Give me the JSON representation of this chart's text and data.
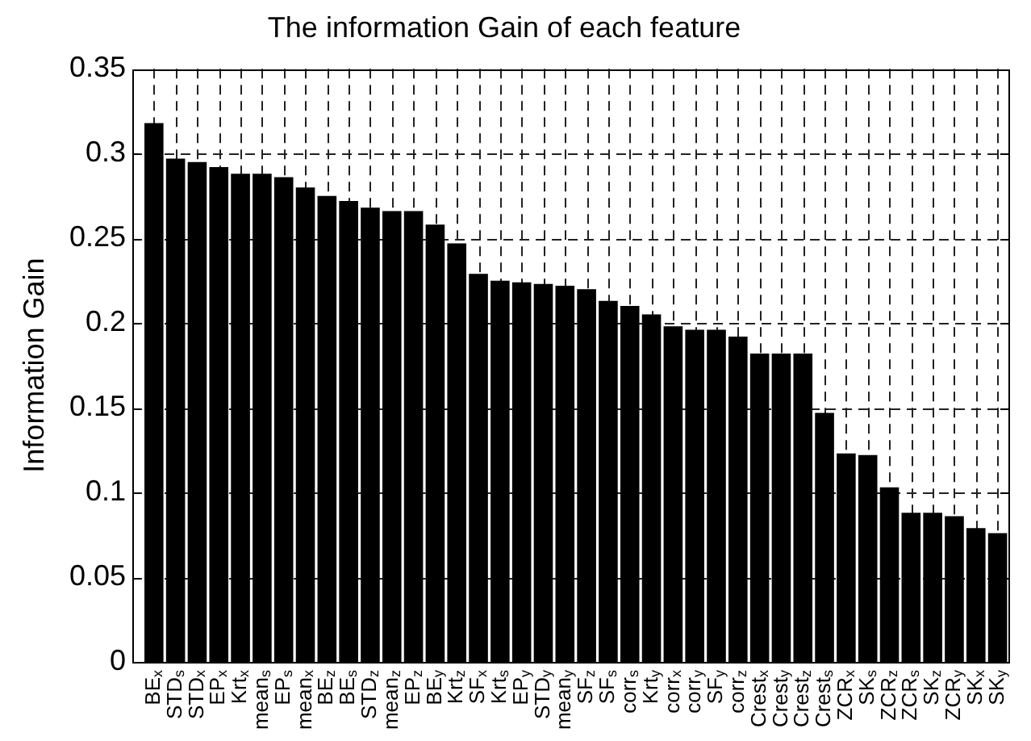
{
  "chart_data": {
    "type": "bar",
    "title": "The information Gain of each feature",
    "ylabel": "Information Gain",
    "categories": [
      "BE$_{x}$",
      "STD$_{s}$",
      "STD$_{x}$",
      "EP$_{x}$",
      "Krt$_{x}$",
      "mean$_{s}$",
      "EP$_{s}$",
      "mean$_{x}$",
      "BE$_{z}$",
      "BE$_{s}$",
      "STD$_{z}$",
      "mean$_{z}$",
      "EP$_{z}$",
      "BE$_{y}$",
      "Krt$_{z}$",
      "SF$_{x}$",
      "Krt$_{s}$",
      "EP$_{y}$",
      "STD$_{y}$",
      "mean$_{y}$",
      "SF$_{z}$",
      "SF$_{s}$",
      "corr$_{s}$",
      "Krt$_{y}$",
      "corr$_{x}$",
      "corr$_{y}$",
      "SF$_{y}$",
      "corr$_{z}$",
      "Crest$_{x}$",
      "Crest$_{y}$",
      "Crest$_{z}$",
      "Crest$_{s}$",
      "ZCR$_{x}$",
      "SK$_{s}$",
      "ZCR$_{z}$",
      "ZCR$_{s}$",
      "SK$_{z}$",
      "ZCR$_{y}$",
      "SK$_{x}$",
      "SK$_{y}$"
    ],
    "values": [
      0.318,
      0.297,
      0.295,
      0.292,
      0.288,
      0.288,
      0.286,
      0.28,
      0.275,
      0.272,
      0.268,
      0.266,
      0.266,
      0.258,
      0.247,
      0.229,
      0.225,
      0.224,
      0.223,
      0.222,
      0.22,
      0.213,
      0.21,
      0.205,
      0.198,
      0.196,
      0.196,
      0.192,
      0.182,
      0.182,
      0.182,
      0.147,
      0.123,
      0.122,
      0.103,
      0.088,
      0.088,
      0.086,
      0.079,
      0.076
    ],
    "color": "#000000",
    "ylim": [
      0,
      0.35
    ],
    "yticks": [
      0,
      0.05,
      0.1,
      0.15,
      0.2,
      0.25,
      0.3,
      0.35
    ],
    "grid": true
  }
}
